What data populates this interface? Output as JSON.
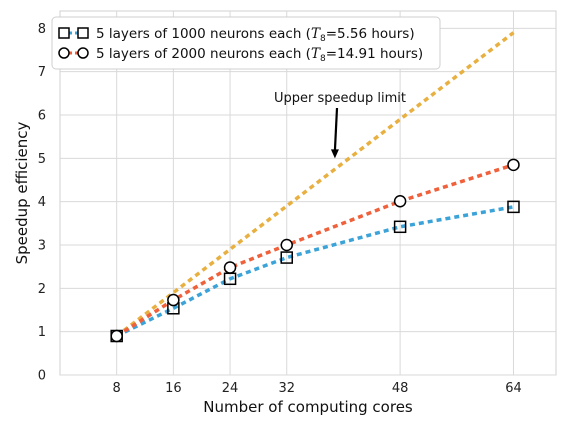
{
  "chart_data": {
    "type": "line",
    "title": "",
    "xlabel": "Number of computing cores",
    "ylabel": "Speedup efficiency",
    "x": [
      8,
      16,
      24,
      32,
      48,
      64
    ],
    "xticks": [
      8,
      16,
      24,
      32,
      48,
      64
    ],
    "yticks": [
      0,
      1,
      2,
      3,
      4,
      5,
      6,
      7,
      8
    ],
    "xlim": [
      0,
      70
    ],
    "ylim": [
      0,
      8.4
    ],
    "grid": true,
    "legend": "top-left",
    "series": [
      {
        "name": "5 layers of 1000 neurons each (T8=5.56 hours)",
        "legend_prefix": "5 layers of 1000 neurons each (",
        "legend_T": "T",
        "legend_sub": "8",
        "legend_suffix": "=5.56 hours)",
        "marker": "square",
        "color": "#3ba3d8",
        "values": [
          0.9,
          1.54,
          2.22,
          2.71,
          3.42,
          3.88
        ]
      },
      {
        "name": "5 layers of 2000 neurons each (T8=14.91 hours)",
        "legend_prefix": "5 layers of 2000 neurons each (",
        "legend_T": "T",
        "legend_sub": "8",
        "legend_suffix": "=14.91 hours)",
        "marker": "circle",
        "color": "#f0603a",
        "values": [
          0.9,
          1.73,
          2.48,
          3.0,
          4.01,
          4.85
        ]
      }
    ],
    "reference_line": {
      "label": "Upper speedup limit",
      "color": "#e8b040",
      "x": [
        8,
        64
      ],
      "values": [
        0.9,
        7.9
      ]
    },
    "annotation": {
      "text": "Upper speedup limit",
      "arrow_target": [
        38.8,
        5.0
      ]
    }
  }
}
